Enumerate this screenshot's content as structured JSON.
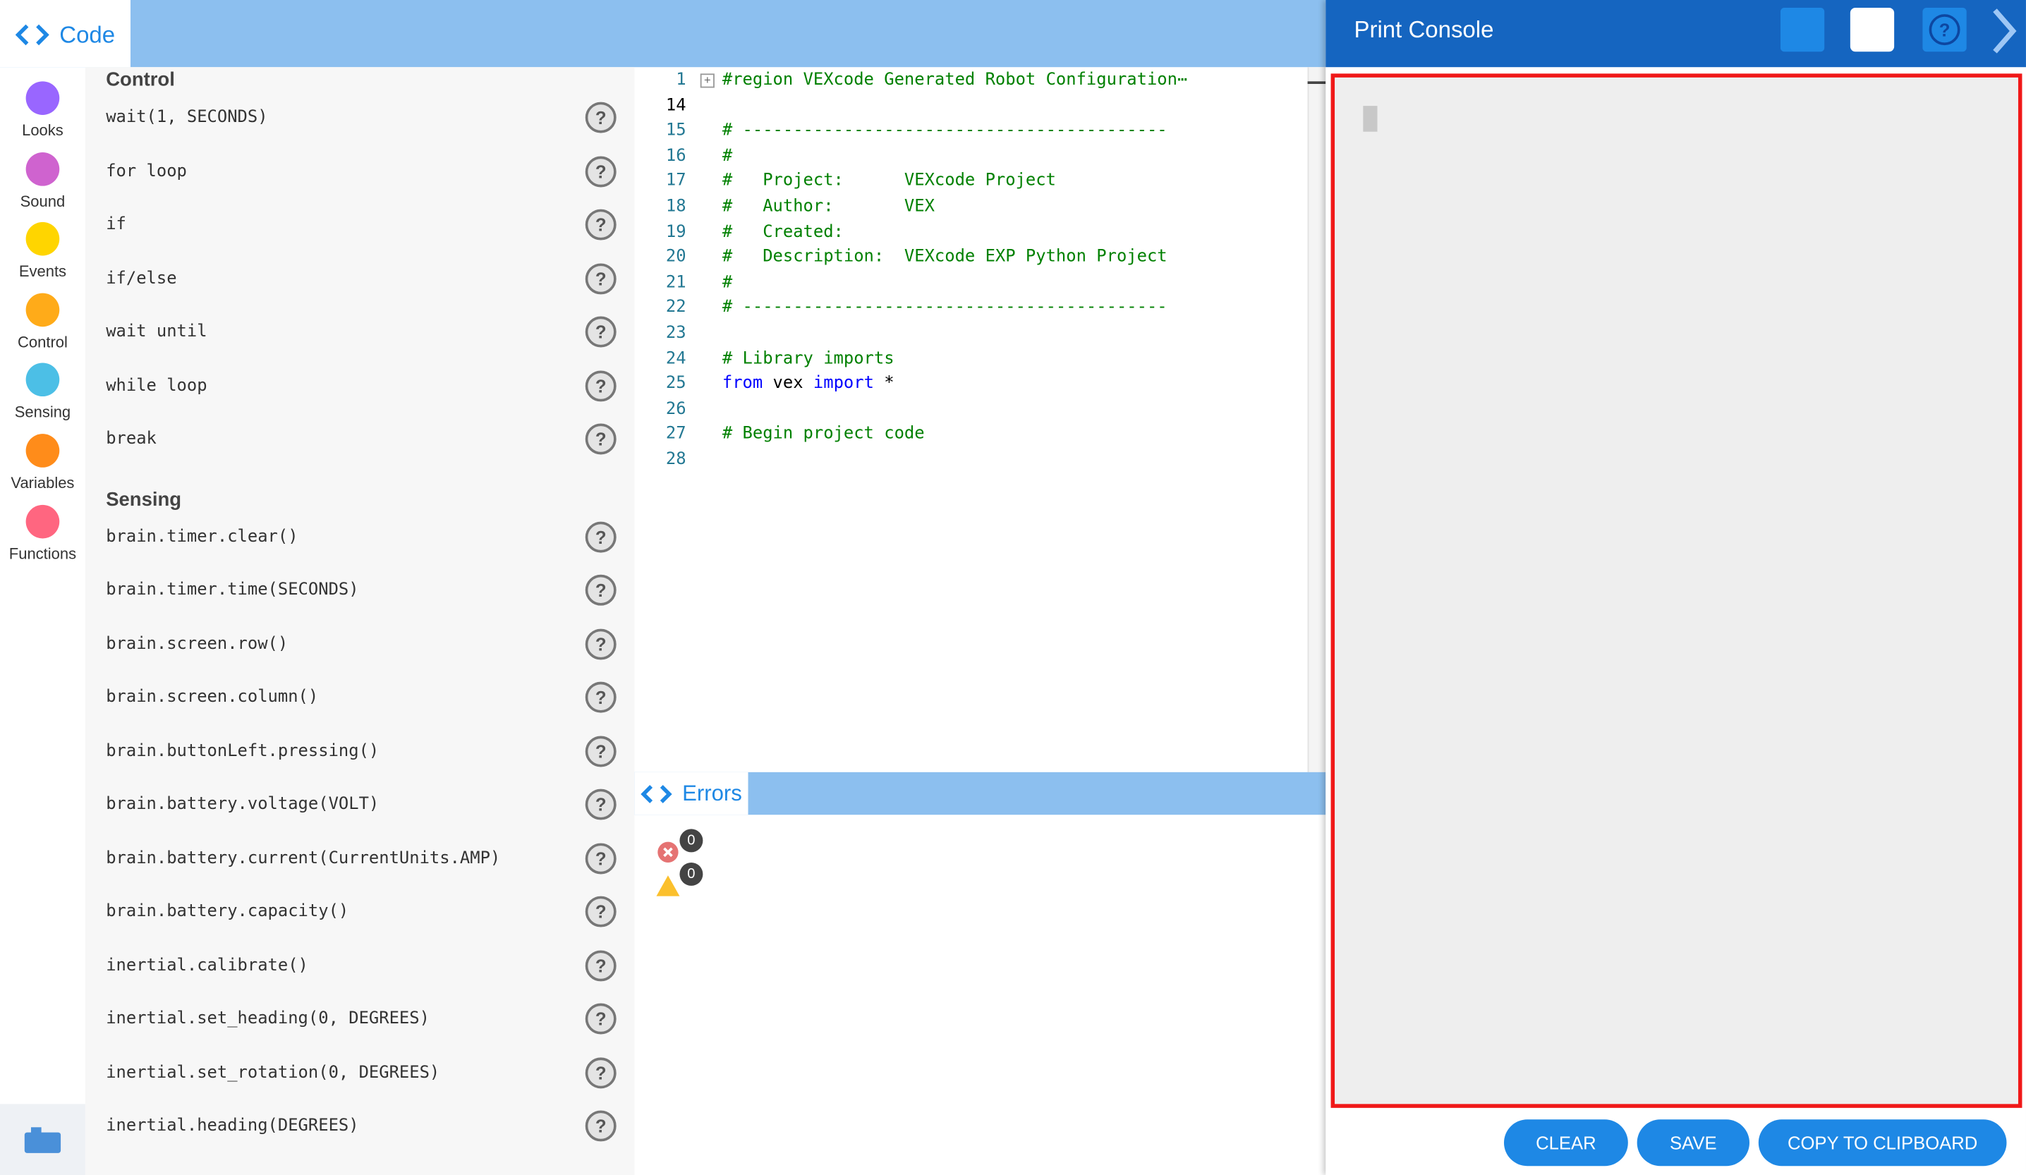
{
  "tab": {
    "title": "Code"
  },
  "categories": [
    "Looks",
    "Sound",
    "Events",
    "Control",
    "Sensing",
    "Variables",
    "Functions"
  ],
  "palette": [
    {
      "title": "Control",
      "items": [
        "wait(1, SECONDS)",
        "for loop",
        "if",
        "if/else",
        "wait until",
        "while loop",
        "break"
      ]
    },
    {
      "title": "Sensing",
      "items": [
        "brain.timer.clear()",
        "brain.timer.time(SECONDS)",
        "brain.screen.row()",
        "brain.screen.column()",
        "brain.buttonLeft.pressing()",
        "brain.battery.voltage(VOLT)",
        "brain.battery.current(CurrentUnits.AMP)",
        "brain.battery.capacity()",
        "inertial.calibrate()",
        "inertial.set_heading(0, DEGREES)",
        "inertial.set_rotation(0, DEGREES)",
        "inertial.heading(DEGREES)"
      ]
    }
  ],
  "code": [
    {
      "num": "1",
      "text": "#region VEXcode Generated Robot Configuration⋯"
    },
    {
      "num": "14",
      "text": ""
    },
    {
      "num": "15",
      "text": "# ------------------------------------------"
    },
    {
      "num": "16",
      "text": "#"
    },
    {
      "num": "17",
      "text": "#   Project:      VEXcode Project"
    },
    {
      "num": "18",
      "text": "#   Author:       VEX"
    },
    {
      "num": "19",
      "text": "#   Created:"
    },
    {
      "num": "20",
      "text": "#   Description:  VEXcode EXP Python Project"
    },
    {
      "num": "21",
      "text": "#"
    },
    {
      "num": "22",
      "text": "# ------------------------------------------"
    },
    {
      "num": "23",
      "text": ""
    },
    {
      "num": "24",
      "text": "# Library imports"
    },
    {
      "num": "25",
      "tokens": [
        "from",
        " vex ",
        "import",
        " *"
      ]
    },
    {
      "num": "26",
      "text": ""
    },
    {
      "num": "27",
      "text": "# Begin project code"
    },
    {
      "num": "28",
      "text": ""
    }
  ],
  "errors": {
    "title": "Errors",
    "error_count": "0",
    "warning_count": "0"
  },
  "console": {
    "title": "Print Console",
    "buttons": [
      "CLEAR",
      "SAVE",
      "COPY TO CLIPBOARD"
    ]
  }
}
